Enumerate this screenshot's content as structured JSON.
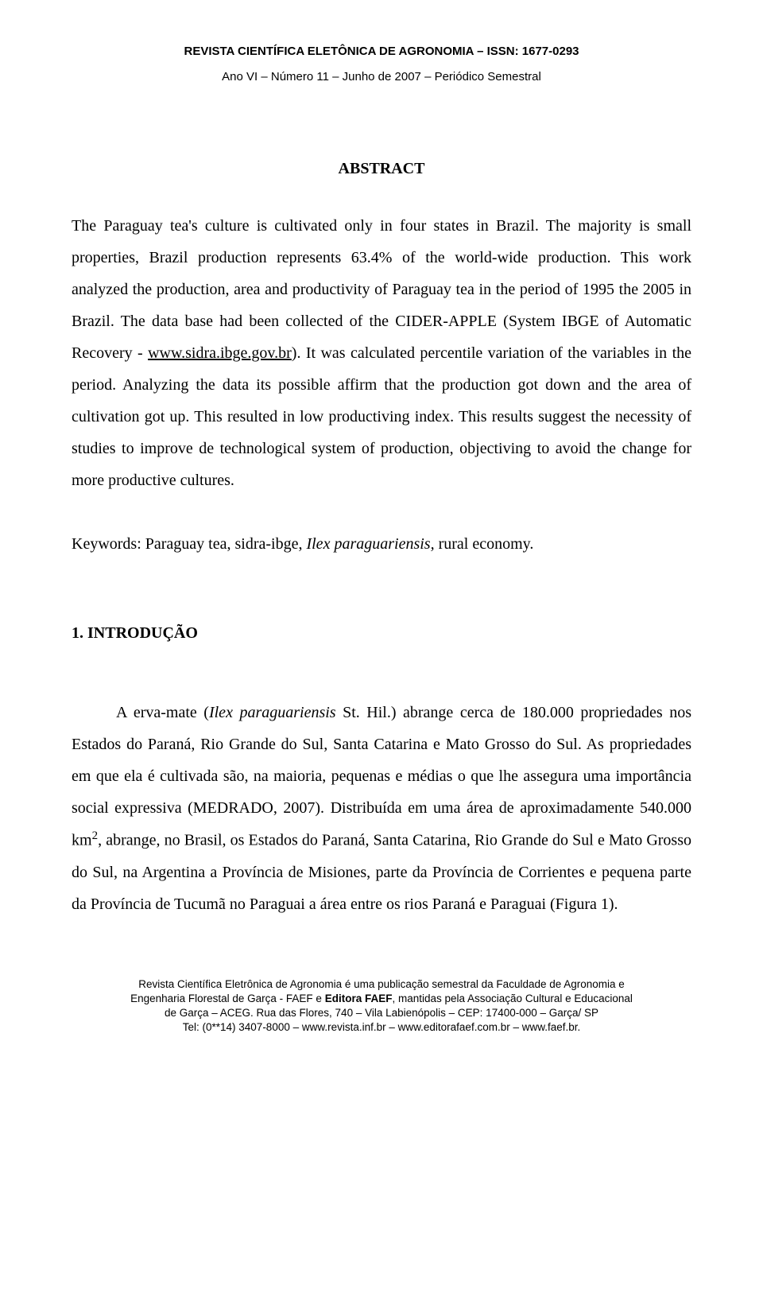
{
  "header": {
    "journal": "REVISTA CIENTÍFICA ELETÔNICA DE AGRONOMIA – ISSN: 1677-0293",
    "issue": "Ano VI – Número 11 – Junho de 2007 – Periódico Semestral"
  },
  "abstract": {
    "heading": "ABSTRACT",
    "text_1": "The Paraguay tea's culture is cultivated only in four states in Brazil. The majority is small properties, Brazil production represents 63.4% of the world-wide production. This work analyzed the production, area and productivity of Paraguay tea in the period of 1995 the 2005 in Brazil. The data base had been collected of the CIDER-APPLE (System IBGE of Automatic Recovery - ",
    "link": "www.sidra.ibge.gov.br",
    "text_2": "). It was calculated percentile variation of the variables in the period. Analyzing the data its possible affirm that the production got down and the area of cultivation got up. This resulted in low productiving index. This results suggest the necessity of studies to improve de technological system of production, objectiving to avoid the change for more productive cultures."
  },
  "keywords": {
    "prefix": "Keywords: Paraguay tea, sidra-ibge, ",
    "italic": "Ilex paraguariensis,",
    "suffix": " rural economy."
  },
  "section": {
    "heading": "1. INTRODUÇÃO",
    "intro_1": "A erva-mate (",
    "intro_italic1": "Ilex paraguariensis",
    "intro_2": " St. Hil.) abrange cerca de 180.000 propriedades nos Estados do Paraná, Rio Grande do Sul, Santa Catarina e Mato Grosso do Sul. As propriedades em que ela é cultivada são, na maioria, pequenas e médias o que lhe assegura uma importância social expressiva (MEDRADO, 2007). Distribuída em uma área de aproximadamente 540.000 km",
    "sup": "2",
    "intro_3": ", abrange, no Brasil, os Estados do Paraná, Santa Catarina, Rio Grande do Sul e Mato Grosso do Sul, na Argentina a Província de Misiones, parte da Província de Corrientes e pequena parte da Província de Tucumã no Paraguai a área entre os rios Paraná e Paraguai (Figura 1)."
  },
  "footer": {
    "line1a": "Revista Científica Eletrônica de Agronomia é uma publicação semestral da Faculdade de Agronomia e",
    "line2a": "Engenharia Florestal de Garça - FAEF e ",
    "line2b": "Editora FAEF",
    "line2c": ", mantidas pela Associação Cultural e Educacional",
    "line3": "de Garça – ACEG. Rua das Flores, 740 – Vila Labienópolis – CEP: 17400-000 – Garça/ SP",
    "line4": "Tel: (0**14) 3407-8000 – www.revista.inf.br – www.editorafaef.com.br – www.faef.br."
  }
}
